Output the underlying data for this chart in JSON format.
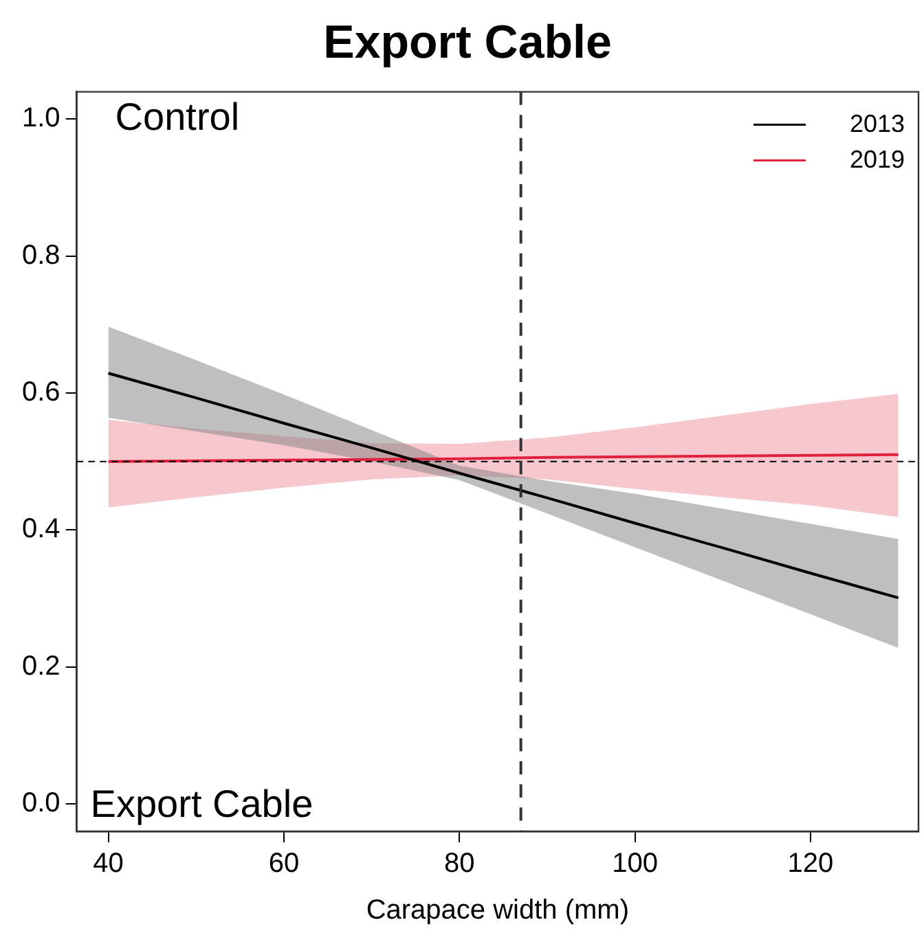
{
  "chart_data": {
    "type": "line",
    "title": "Export Cable",
    "xlabel": "Carapace width (mm)",
    "x": [
      40,
      50,
      60,
      70,
      80,
      90,
      100,
      110,
      120,
      130
    ],
    "series": [
      {
        "name": "2013",
        "color": "#000000",
        "values": [
          0.629,
          0.593,
          0.556,
          0.52,
          0.483,
          0.447,
          0.41,
          0.374,
          0.337,
          0.301
        ],
        "lower": [
          0.564,
          0.544,
          0.524,
          0.5,
          0.473,
          0.424,
          0.375,
          0.326,
          0.277,
          0.228
        ],
        "upper": [
          0.697,
          0.648,
          0.598,
          0.546,
          0.494,
          0.472,
          0.453,
          0.431,
          0.409,
          0.387
        ]
      },
      {
        "name": "2019",
        "color": "#e0203c",
        "values": [
          0.5,
          0.501,
          0.502,
          0.503,
          0.504,
          0.506,
          0.507,
          0.508,
          0.509,
          0.51
        ],
        "lower": [
          0.433,
          0.448,
          0.462,
          0.474,
          0.48,
          0.474,
          0.46,
          0.448,
          0.436,
          0.419
        ],
        "upper": [
          0.561,
          0.548,
          0.537,
          0.527,
          0.526,
          0.535,
          0.55,
          0.567,
          0.584,
          0.599
        ]
      }
    ],
    "xlim": [
      36.4,
      132.3
    ],
    "xticks": [
      40,
      60,
      80,
      100,
      120
    ],
    "ylim": [
      -0.04,
      1.04
    ],
    "yticks": [
      {
        "value": 0,
        "label": "0.0"
      },
      0.2,
      0.4,
      0.6,
      0.8,
      {
        "value": 1,
        "label": "1.0"
      }
    ],
    "ref_lines": [
      {
        "axis": "y",
        "value": 0.5,
        "line_style": "dashed",
        "color": "#000000"
      },
      {
        "axis": "x",
        "value": 87,
        "line_style": "dashed",
        "color": "#333333"
      }
    ],
    "annotations": [
      "Control",
      "Export Cable"
    ],
    "legend": "top right",
    "grid": false,
    "marker": "none",
    "line_style": "solid"
  }
}
